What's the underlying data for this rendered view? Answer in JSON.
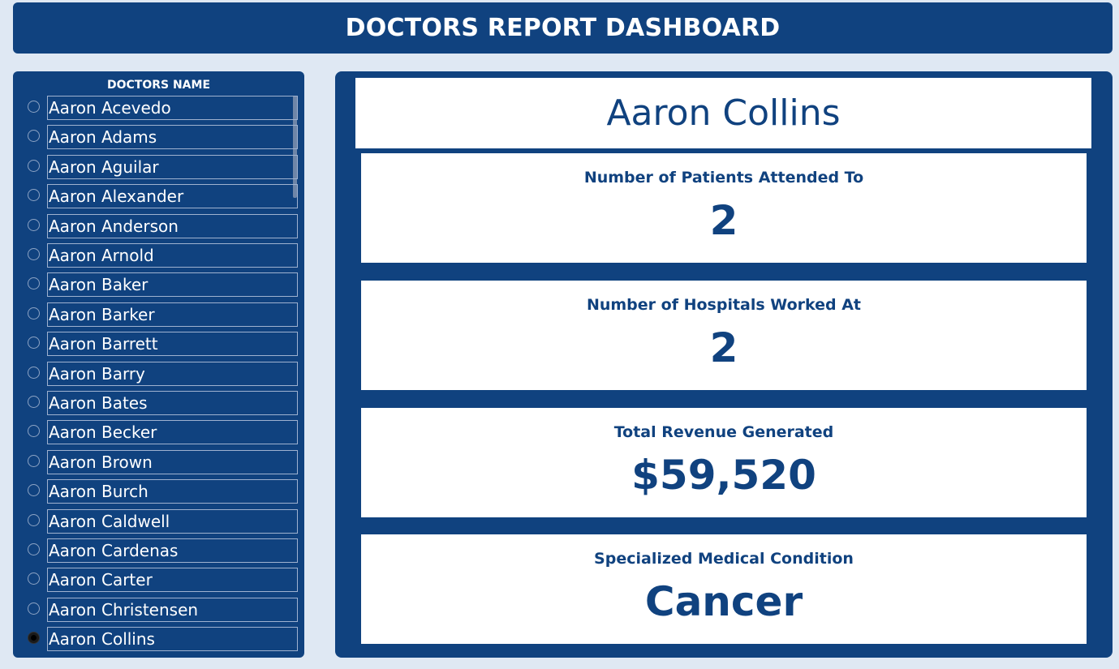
{
  "header": {
    "title": "DOCTORS REPORT DASHBOARD"
  },
  "slicer": {
    "title": "DOCTORS NAME",
    "items": [
      {
        "label": "Aaron Acevedo",
        "selected": false
      },
      {
        "label": "Aaron Adams",
        "selected": false
      },
      {
        "label": "Aaron Aguilar",
        "selected": false
      },
      {
        "label": "Aaron Alexander",
        "selected": false
      },
      {
        "label": "Aaron Anderson",
        "selected": false
      },
      {
        "label": "Aaron Arnold",
        "selected": false
      },
      {
        "label": "Aaron Baker",
        "selected": false
      },
      {
        "label": "Aaron Barker",
        "selected": false
      },
      {
        "label": "Aaron Barrett",
        "selected": false
      },
      {
        "label": "Aaron Barry",
        "selected": false
      },
      {
        "label": "Aaron Bates",
        "selected": false
      },
      {
        "label": "Aaron Becker",
        "selected": false
      },
      {
        "label": "Aaron Brown",
        "selected": false
      },
      {
        "label": "Aaron Burch",
        "selected": false
      },
      {
        "label": "Aaron Caldwell",
        "selected": false
      },
      {
        "label": "Aaron Cardenas",
        "selected": false
      },
      {
        "label": "Aaron Carter",
        "selected": false
      },
      {
        "label": "Aaron Christensen",
        "selected": false
      },
      {
        "label": "Aaron Collins",
        "selected": true
      }
    ]
  },
  "main": {
    "doctor_name": "Aaron Collins",
    "kpis": [
      {
        "label": "Number of Patients Attended To",
        "value": "2"
      },
      {
        "label": "Number of Hospitals Worked At",
        "value": "2"
      },
      {
        "label": "Total Revenue Generated",
        "value": "$59,520"
      },
      {
        "label": "Specialized Medical Condition",
        "value": "Cancer"
      }
    ]
  },
  "colors": {
    "primary": "#10427f",
    "background": "#dfe8f3",
    "card": "#ffffff"
  }
}
